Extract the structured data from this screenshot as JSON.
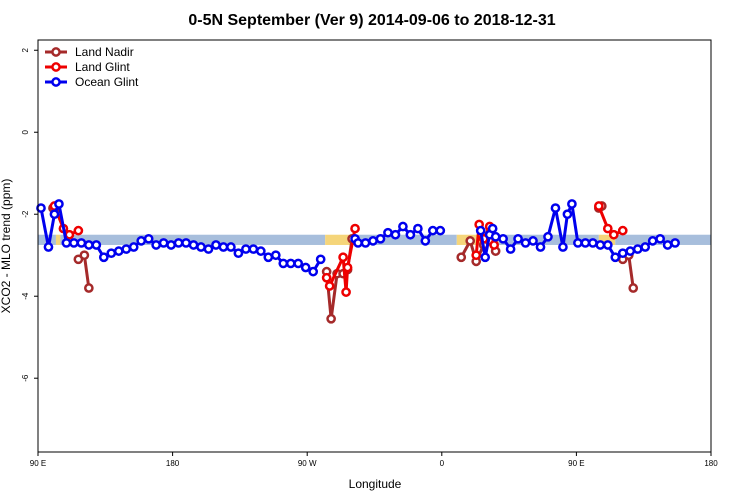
{
  "chart_data": {
    "type": "line",
    "title": "0-5N September (Ver 9)   2014-09-06 to 2018-12-31",
    "xlabel": "Longitude",
    "ylabel": "XCO2 - MLO trend (ppm)",
    "x_ticks": [
      {
        "value": 90,
        "label": "90 E"
      },
      {
        "value": 180,
        "label": "180"
      },
      {
        "value": 270,
        "label": "90 W"
      },
      {
        "value": 360,
        "label": "0"
      },
      {
        "value": 450,
        "label": "90 E"
      },
      {
        "value": 540,
        "label": "180"
      }
    ],
    "y_ticks": [
      {
        "value": 2,
        "label": "2"
      },
      {
        "value": 0,
        "label": "0"
      },
      {
        "value": -2,
        "label": "-2"
      },
      {
        "value": -4,
        "label": "-4"
      },
      {
        "value": -6,
        "label": "-6"
      }
    ],
    "xlim": [
      90,
      540
    ],
    "ylim": [
      -7.8,
      2.25
    ],
    "surface_band": {
      "y_range": [
        -2.75,
        -2.5
      ],
      "colors": {
        "ocean": "#a7bedc",
        "land": "#f5d57a"
      },
      "segments": [
        {
          "type": "ocean",
          "x": [
            90,
            102
          ]
        },
        {
          "type": "land",
          "x": [
            102,
            105
          ]
        },
        {
          "type": "ocean",
          "x": [
            105,
            282
          ]
        },
        {
          "type": "land",
          "x": [
            282,
            300
          ]
        },
        {
          "type": "ocean",
          "x": [
            300,
            370
          ]
        },
        {
          "type": "land",
          "x": [
            370,
            398
          ]
        },
        {
          "type": "ocean",
          "x": [
            398,
            465
          ]
        },
        {
          "type": "land",
          "x": [
            465,
            476
          ]
        },
        {
          "type": "ocean",
          "x": [
            476,
            540
          ]
        }
      ]
    },
    "legend": {
      "position": "top-left"
    },
    "series": [
      {
        "name": "Land Nadir",
        "color": "#a52a2a",
        "segments": [
          [
            {
              "x": 100,
              "y": -1.85
            },
            {
              "x": 102,
              "y": -1.85
            }
          ],
          [
            {
              "x": 117,
              "y": -3.1
            },
            {
              "x": 121,
              "y": -3.0
            },
            {
              "x": 124,
              "y": -3.8
            }
          ],
          [
            {
              "x": 283,
              "y": -3.4
            },
            {
              "x": 286,
              "y": -4.55
            },
            {
              "x": 290,
              "y": -3.45
            },
            {
              "x": 294,
              "y": -3.45
            },
            {
              "x": 297,
              "y": -3.35
            },
            {
              "x": 300,
              "y": -2.6
            }
          ],
          [
            {
              "x": 373,
              "y": -3.05
            },
            {
              "x": 379,
              "y": -2.65
            },
            {
              "x": 383,
              "y": -3.15
            },
            {
              "x": 388,
              "y": -2.75
            },
            {
              "x": 392,
              "y": -2.65
            },
            {
              "x": 396,
              "y": -2.9
            }
          ],
          [
            {
              "x": 465,
              "y": -1.85
            },
            {
              "x": 467,
              "y": -1.8
            }
          ],
          [
            {
              "x": 481,
              "y": -3.1
            },
            {
              "x": 485,
              "y": -3.0
            },
            {
              "x": 488,
              "y": -3.8
            }
          ]
        ]
      },
      {
        "name": "Land Glint",
        "color": "#ee0000",
        "segments": [
          [
            {
              "x": 101,
              "y": -1.8
            },
            {
              "x": 107,
              "y": -2.35
            },
            {
              "x": 111,
              "y": -2.5
            },
            {
              "x": 117,
              "y": -2.4
            }
          ],
          [
            {
              "x": 283,
              "y": -3.55
            },
            {
              "x": 285,
              "y": -3.75
            },
            {
              "x": 294,
              "y": -3.05
            },
            {
              "x": 296,
              "y": -3.9
            },
            {
              "x": 297,
              "y": -3.3
            },
            {
              "x": 302,
              "y": -2.35
            }
          ],
          [
            {
              "x": 383,
              "y": -3.0
            },
            {
              "x": 385,
              "y": -2.25
            },
            {
              "x": 388,
              "y": -2.6
            },
            {
              "x": 392,
              "y": -2.3
            },
            {
              "x": 395,
              "y": -2.75
            }
          ],
          [
            {
              "x": 465,
              "y": -1.8
            },
            {
              "x": 471,
              "y": -2.35
            },
            {
              "x": 475,
              "y": -2.5
            },
            {
              "x": 481,
              "y": -2.4
            }
          ]
        ]
      },
      {
        "name": "Ocean Glint",
        "color": "#0000ee",
        "segments": [
          [
            {
              "x": 92,
              "y": -1.85
            },
            {
              "x": 97,
              "y": -2.8
            },
            {
              "x": 101,
              "y": -2.0
            },
            {
              "x": 104,
              "y": -1.75
            },
            {
              "x": 109,
              "y": -2.7
            },
            {
              "x": 114,
              "y": -2.7
            },
            {
              "x": 119,
              "y": -2.7
            },
            {
              "x": 124,
              "y": -2.75
            },
            {
              "x": 129,
              "y": -2.75
            },
            {
              "x": 134,
              "y": -3.05
            },
            {
              "x": 139,
              "y": -2.95
            },
            {
              "x": 144,
              "y": -2.9
            },
            {
              "x": 149,
              "y": -2.85
            },
            {
              "x": 154,
              "y": -2.8
            },
            {
              "x": 159,
              "y": -2.65
            },
            {
              "x": 164,
              "y": -2.6
            },
            {
              "x": 169,
              "y": -2.75
            },
            {
              "x": 174,
              "y": -2.7
            },
            {
              "x": 179,
              "y": -2.75
            },
            {
              "x": 184,
              "y": -2.7
            },
            {
              "x": 189,
              "y": -2.7
            },
            {
              "x": 194,
              "y": -2.75
            },
            {
              "x": 199,
              "y": -2.8
            },
            {
              "x": 204,
              "y": -2.85
            },
            {
              "x": 209,
              "y": -2.75
            },
            {
              "x": 214,
              "y": -2.8
            },
            {
              "x": 219,
              "y": -2.8
            },
            {
              "x": 224,
              "y": -2.95
            },
            {
              "x": 229,
              "y": -2.85
            },
            {
              "x": 234,
              "y": -2.85
            },
            {
              "x": 239,
              "y": -2.9
            },
            {
              "x": 244,
              "y": -3.05
            },
            {
              "x": 249,
              "y": -3.0
            },
            {
              "x": 254,
              "y": -3.2
            },
            {
              "x": 259,
              "y": -3.2
            },
            {
              "x": 264,
              "y": -3.2
            },
            {
              "x": 269,
              "y": -3.3
            },
            {
              "x": 274,
              "y": -3.4
            },
            {
              "x": 279,
              "y": -3.1
            }
          ],
          [
            {
              "x": 302,
              "y": -2.6
            },
            {
              "x": 304,
              "y": -2.7
            },
            {
              "x": 309,
              "y": -2.7
            },
            {
              "x": 314,
              "y": -2.65
            },
            {
              "x": 319,
              "y": -2.6
            },
            {
              "x": 324,
              "y": -2.45
            },
            {
              "x": 329,
              "y": -2.5
            },
            {
              "x": 334,
              "y": -2.3
            },
            {
              "x": 339,
              "y": -2.5
            },
            {
              "x": 344,
              "y": -2.35
            },
            {
              "x": 349,
              "y": -2.65
            },
            {
              "x": 354,
              "y": -2.4
            },
            {
              "x": 359,
              "y": -2.4
            }
          ],
          [
            {
              "x": 386,
              "y": -2.4
            },
            {
              "x": 389,
              "y": -3.05
            },
            {
              "x": 392,
              "y": -2.5
            },
            {
              "x": 394,
              "y": -2.35
            },
            {
              "x": 396,
              "y": -2.55
            },
            {
              "x": 401,
              "y": -2.6
            },
            {
              "x": 406,
              "y": -2.85
            },
            {
              "x": 411,
              "y": -2.6
            },
            {
              "x": 416,
              "y": -2.7
            },
            {
              "x": 421,
              "y": -2.65
            },
            {
              "x": 426,
              "y": -2.8
            },
            {
              "x": 431,
              "y": -2.55
            },
            {
              "x": 436,
              "y": -1.85
            },
            {
              "x": 441,
              "y": -2.8
            },
            {
              "x": 444,
              "y": -2.0
            },
            {
              "x": 447,
              "y": -1.75
            },
            {
              "x": 451,
              "y": -2.7
            },
            {
              "x": 456,
              "y": -2.7
            },
            {
              "x": 461,
              "y": -2.7
            },
            {
              "x": 466,
              "y": -2.75
            },
            {
              "x": 471,
              "y": -2.75
            },
            {
              "x": 476,
              "y": -3.05
            },
            {
              "x": 481,
              "y": -2.95
            },
            {
              "x": 486,
              "y": -2.9
            },
            {
              "x": 491,
              "y": -2.85
            },
            {
              "x": 496,
              "y": -2.8
            },
            {
              "x": 501,
              "y": -2.65
            },
            {
              "x": 506,
              "y": -2.6
            },
            {
              "x": 511,
              "y": -2.75
            },
            {
              "x": 516,
              "y": -2.7
            }
          ]
        ]
      }
    ]
  }
}
